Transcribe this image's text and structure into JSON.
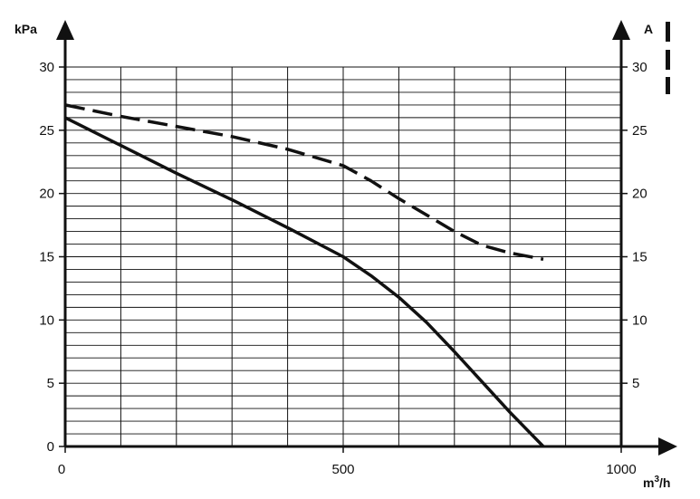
{
  "chart_data": {
    "type": "line",
    "left_axis": {
      "label": "kPa",
      "range": [
        0,
        30
      ],
      "ticks": [
        "0",
        "5",
        "10",
        "15",
        "20",
        "25",
        "30"
      ]
    },
    "right_axis": {
      "label": "A",
      "range": [
        0,
        30
      ],
      "ticks": [
        "5",
        "10",
        "15",
        "20",
        "25",
        "30"
      ]
    },
    "x_axis": {
      "label": "m³/h",
      "range": [
        0,
        1000
      ],
      "ticks": [
        "0",
        "500",
        "1000"
      ]
    },
    "grid": true,
    "grid_steps": {
      "x": 100,
      "y": 1
    },
    "legend": "dashed line marker at top-right",
    "series": [
      {
        "axis": "left",
        "style": "solid",
        "points": [
          [
            0,
            26
          ],
          [
            100,
            23.8
          ],
          [
            200,
            21.6
          ],
          [
            300,
            19.5
          ],
          [
            400,
            17.3
          ],
          [
            500,
            15.0
          ],
          [
            550,
            13.5
          ],
          [
            600,
            11.8
          ],
          [
            650,
            9.8
          ],
          [
            700,
            7.5
          ],
          [
            750,
            5.1
          ],
          [
            800,
            2.7
          ],
          [
            860,
            0
          ]
        ]
      },
      {
        "axis": "right",
        "style": "dashed",
        "points": [
          [
            0,
            27
          ],
          [
            100,
            26.1
          ],
          [
            200,
            25.3
          ],
          [
            300,
            24.5
          ],
          [
            400,
            23.5
          ],
          [
            500,
            22.2
          ],
          [
            550,
            21.0
          ],
          [
            600,
            19.6
          ],
          [
            650,
            18.3
          ],
          [
            700,
            17.0
          ],
          [
            750,
            15.9
          ],
          [
            800,
            15.3
          ],
          [
            860,
            14.8
          ]
        ]
      }
    ]
  }
}
